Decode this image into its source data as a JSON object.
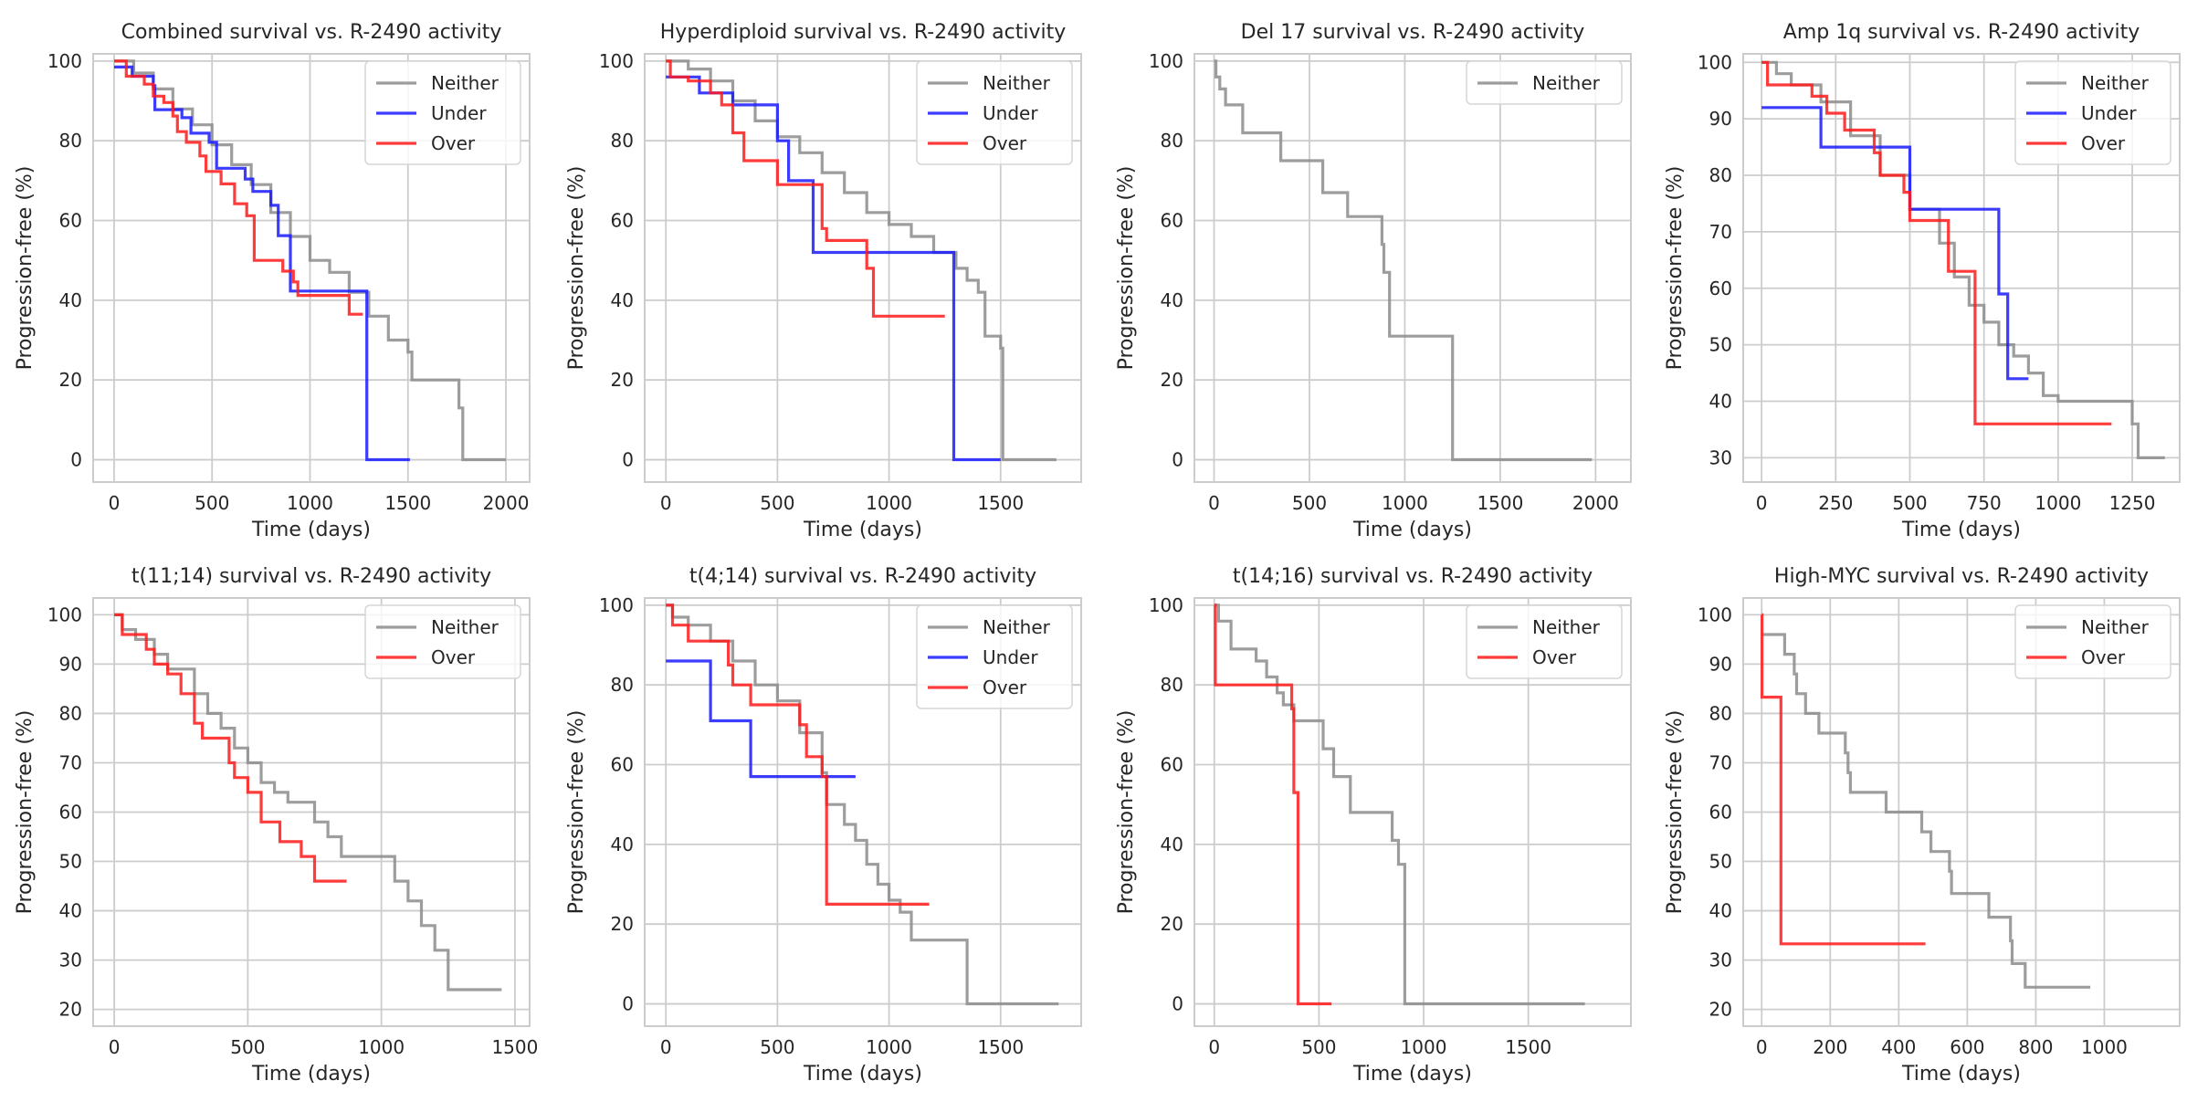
{
  "colors": {
    "Neither": "#8c8c8c",
    "Under": "#1a1aff",
    "Over": "#ff1a1a",
    "grid": "#cccccc"
  },
  "chart_data": [
    {
      "type": "line",
      "step": true,
      "title": "Combined survival vs. R-2490 activity",
      "xlabel": "Time (days)",
      "ylabel": "Progression-free (%)",
      "xlim": [
        -107,
        2121
      ],
      "ylim": [
        -5.6,
        101.8
      ],
      "xticks": [
        0,
        500,
        1000,
        1500,
        2000
      ],
      "yticks": [
        0,
        20,
        40,
        60,
        80,
        100
      ],
      "grid": true,
      "legend": "top-right",
      "series": [
        {
          "name": "Neither",
          "t": [
            0,
            100,
            200,
            300,
            400,
            500,
            600,
            700,
            800,
            900,
            1000,
            1100,
            1200,
            1300,
            1400,
            1500,
            1520,
            1760,
            1780,
            2000
          ],
          "s": [
            100,
            97,
            93,
            88,
            84,
            79,
            74,
            69,
            62,
            56,
            50,
            47,
            42,
            36,
            30,
            27,
            20,
            13,
            0,
            0
          ]
        },
        {
          "name": "Under",
          "t": [
            0,
            92,
            200,
            208,
            346,
            392,
            485,
            523,
            669,
            708,
            800,
            838,
            900,
            1290,
            1510
          ],
          "s": [
            98.5,
            96.2,
            93.8,
            87.8,
            85.8,
            81.9,
            79.6,
            73.1,
            70.4,
            67.3,
            63.8,
            56.2,
            42.3,
            0,
            0
          ]
        },
        {
          "name": "Over",
          "t": [
            0,
            62,
            154,
            200,
            254,
            300,
            323,
            369,
            438,
            469,
            546,
            615,
            677,
            715,
            861,
            915,
            938,
            1200,
            1270
          ],
          "s": [
            100,
            96.2,
            94.2,
            91.2,
            89.6,
            86.2,
            82.3,
            79.6,
            76.2,
            72.3,
            69.2,
            64.2,
            61.2,
            50,
            47.3,
            44.6,
            41.2,
            36.5,
            36.5
          ]
        }
      ]
    },
    {
      "type": "line",
      "step": true,
      "title": "Hyperdiploid survival vs. R-2490 activity",
      "xlabel": "Time (days)",
      "ylabel": "Progression-free (%)",
      "xlim": [
        -95,
        1861
      ],
      "ylim": [
        -5.6,
        101.8
      ],
      "xticks": [
        0,
        500,
        1000,
        1500
      ],
      "yticks": [
        0,
        20,
        40,
        60,
        80,
        100
      ],
      "grid": true,
      "legend": "top-right",
      "series": [
        {
          "name": "Neither",
          "t": [
            0,
            100,
            200,
            300,
            400,
            500,
            600,
            700,
            800,
            900,
            1000,
            1100,
            1200,
            1300,
            1350,
            1400,
            1430,
            1500,
            1510,
            1750
          ],
          "s": [
            100,
            98,
            95,
            90,
            85,
            81,
            77,
            72,
            67,
            62,
            59,
            56,
            52,
            48,
            45,
            42,
            31,
            28,
            0,
            0
          ]
        },
        {
          "name": "Under",
          "t": [
            0,
            150,
            300,
            500,
            550,
            660,
            1290,
            1500
          ],
          "s": [
            96,
            92,
            89,
            80,
            70,
            52,
            0,
            0
          ]
        },
        {
          "name": "Over",
          "t": [
            0,
            20,
            100,
            200,
            250,
            300,
            350,
            500,
            700,
            720,
            900,
            930,
            1250
          ],
          "s": [
            100,
            96,
            95,
            92,
            89,
            82,
            75,
            69,
            58,
            55,
            48,
            36,
            36
          ]
        }
      ]
    },
    {
      "type": "line",
      "step": true,
      "title": "Del 17 survival vs. R-2490 activity",
      "xlabel": "Time (days)",
      "ylabel": "Progression-free (%)",
      "xlim": [
        -103,
        2185
      ],
      "ylim": [
        -5.6,
        101.8
      ],
      "xticks": [
        0,
        500,
        1000,
        1500,
        2000
      ],
      "yticks": [
        0,
        20,
        40,
        60,
        80,
        100
      ],
      "grid": true,
      "legend": "top-right",
      "series": [
        {
          "name": "Neither",
          "t": [
            0,
            10,
            30,
            60,
            150,
            350,
            570,
            700,
            880,
            890,
            920,
            1250,
            1980
          ],
          "s": [
            100,
            96,
            93,
            89,
            82,
            75,
            67,
            61,
            54,
            47,
            31,
            0,
            0
          ]
        }
      ]
    },
    {
      "type": "line",
      "step": true,
      "title": "Amp 1q survival vs. R-2490 activity",
      "xlabel": "Time (days)",
      "ylabel": "Progression-free (%)",
      "xlim": [
        -62,
        1410
      ],
      "ylim": [
        25.7,
        101.5
      ],
      "xticks": [
        0,
        250,
        500,
        750,
        1000,
        1250
      ],
      "yticks": [
        30,
        40,
        50,
        60,
        70,
        80,
        90,
        100
      ],
      "grid": true,
      "legend": "top-right",
      "series": [
        {
          "name": "Neither",
          "t": [
            0,
            50,
            100,
            200,
            300,
            400,
            500,
            600,
            650,
            700,
            750,
            800,
            850,
            900,
            950,
            1000,
            1250,
            1270,
            1360
          ],
          "s": [
            100,
            98,
            96,
            93,
            87,
            80,
            74,
            68,
            62,
            57,
            54,
            50,
            48,
            45,
            41,
            40,
            36,
            30,
            30
          ]
        },
        {
          "name": "Under",
          "t": [
            0,
            200,
            500,
            800,
            830,
            900
          ],
          "s": [
            92,
            85,
            74,
            59,
            44,
            44
          ]
        },
        {
          "name": "Over",
          "t": [
            0,
            20,
            170,
            220,
            280,
            380,
            400,
            480,
            500,
            630,
            720,
            1180
          ],
          "s": [
            100,
            96,
            94,
            91,
            88,
            84,
            80,
            77,
            72,
            63,
            36,
            36
          ]
        }
      ]
    },
    {
      "type": "line",
      "step": true,
      "title": "t(11;14) survival vs. R-2490 activity",
      "xlabel": "Time (days)",
      "ylabel": "Progression-free (%)",
      "xlim": [
        -79,
        1555
      ],
      "ylim": [
        16.6,
        103.4
      ],
      "xticks": [
        0,
        500,
        1000,
        1500
      ],
      "yticks": [
        20,
        30,
        40,
        50,
        60,
        70,
        80,
        90,
        100
      ],
      "grid": true,
      "legend": "top-right",
      "series": [
        {
          "name": "Neither",
          "t": [
            0,
            30,
            80,
            150,
            200,
            300,
            350,
            400,
            450,
            500,
            550,
            600,
            650,
            750,
            800,
            850,
            1050,
            1100,
            1150,
            1200,
            1250,
            1450
          ],
          "s": [
            100,
            97,
            95,
            92,
            89,
            84,
            80,
            77,
            73,
            70,
            66,
            64,
            62,
            58,
            55,
            51,
            46,
            42,
            37,
            32,
            24,
            24
          ]
        },
        {
          "name": "Over",
          "t": [
            0,
            30,
            120,
            150,
            200,
            250,
            300,
            330,
            430,
            450,
            500,
            550,
            620,
            700,
            750,
            870
          ],
          "s": [
            100,
            96,
            93,
            90,
            88,
            84,
            78,
            75,
            70,
            67,
            64,
            58,
            54,
            51,
            46,
            46
          ]
        }
      ]
    },
    {
      "type": "line",
      "step": true,
      "title": "t(4;14) survival vs. R-2490 activity",
      "xlabel": "Time (days)",
      "ylabel": "Progression-free (%)",
      "xlim": [
        -95,
        1861
      ],
      "ylim": [
        -5.6,
        101.8
      ],
      "xticks": [
        0,
        500,
        1000,
        1500
      ],
      "yticks": [
        0,
        20,
        40,
        60,
        80,
        100
      ],
      "grid": true,
      "legend": "top-right",
      "series": [
        {
          "name": "Neither",
          "t": [
            0,
            30,
            100,
            200,
            300,
            400,
            500,
            600,
            700,
            720,
            800,
            850,
            900,
            950,
            1000,
            1050,
            1100,
            1350,
            1760
          ],
          "s": [
            100,
            97,
            95,
            91,
            86,
            80,
            76,
            68,
            58,
            50,
            45,
            41,
            35,
            30,
            26,
            23,
            16,
            0,
            0
          ]
        },
        {
          "name": "Under",
          "t": [
            0,
            200,
            380,
            850
          ],
          "s": [
            86,
            71,
            57,
            57
          ]
        },
        {
          "name": "Over",
          "t": [
            0,
            30,
            100,
            280,
            300,
            380,
            600,
            630,
            700,
            720,
            1180
          ],
          "s": [
            100,
            95,
            91,
            85,
            80,
            75,
            70,
            62,
            57,
            25,
            25
          ]
        }
      ]
    },
    {
      "type": "line",
      "step": true,
      "title": "t(14;16) survival vs. R-2490 activity",
      "xlabel": "Time (days)",
      "ylabel": "Progression-free (%)",
      "xlim": [
        -95,
        1990
      ],
      "ylim": [
        -5.6,
        101.8
      ],
      "xticks": [
        0,
        500,
        1000,
        1500
      ],
      "yticks": [
        0,
        20,
        40,
        60,
        80,
        100
      ],
      "grid": true,
      "legend": "top-right",
      "series": [
        {
          "name": "Neither",
          "t": [
            0,
            20,
            80,
            200,
            250,
            300,
            330,
            380,
            520,
            570,
            650,
            850,
            880,
            910,
            1770
          ],
          "s": [
            100,
            96,
            89,
            86,
            82,
            78,
            75,
            71,
            64,
            57,
            48,
            41,
            35,
            0,
            0
          ]
        },
        {
          "name": "Over",
          "t": [
            0,
            5,
            350,
            370,
            380,
            400,
            560
          ],
          "s": [
            100,
            80,
            80,
            74,
            53,
            0,
            0
          ]
        }
      ]
    },
    {
      "type": "line",
      "step": true,
      "title": "High-MYC survival vs. R-2490 activity",
      "xlabel": "Time (days)",
      "ylabel": "Progression-free (%)",
      "xlim": [
        -54,
        1220
      ],
      "ylim": [
        16.6,
        103.4
      ],
      "xticks": [
        0,
        200,
        400,
        600,
        800,
        1000
      ],
      "yticks": [
        20,
        30,
        40,
        50,
        60,
        70,
        80,
        90,
        100
      ],
      "grid": true,
      "legend": "top-right",
      "series": [
        {
          "name": "Neither",
          "t": [
            0,
            67,
            95,
            102,
            128,
            167,
            244,
            252,
            259,
            363,
            467,
            494,
            548,
            554,
            663,
            726,
            731,
            769,
            959
          ],
          "s": [
            96,
            92,
            88,
            84,
            80,
            76,
            72,
            68,
            64,
            60,
            56,
            52,
            48,
            43.5,
            38.7,
            33.9,
            29.3,
            24.5,
            24.5
          ]
        },
        {
          "name": "Over",
          "t": [
            0,
            1,
            56,
            478
          ],
          "s": [
            100,
            83.3,
            33.3,
            33.3
          ]
        }
      ]
    }
  ]
}
